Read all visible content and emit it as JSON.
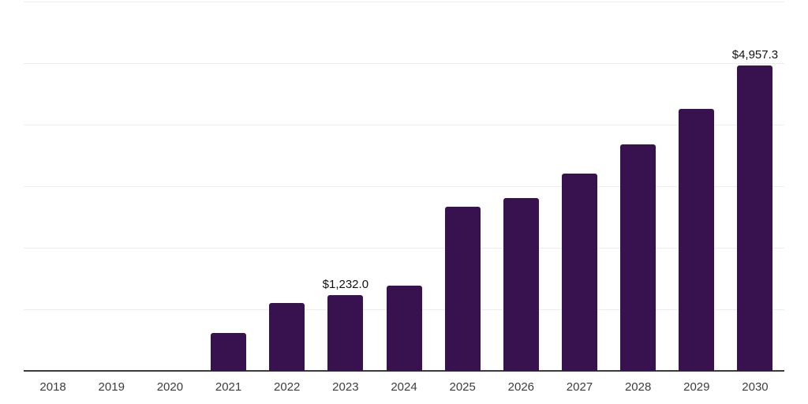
{
  "chart_data": {
    "type": "bar",
    "title": "",
    "xlabel": "",
    "ylabel": "",
    "categories": [
      "2018",
      "2019",
      "2020",
      "2021",
      "2022",
      "2023",
      "2024",
      "2025",
      "2026",
      "2027",
      "2028",
      "2029",
      "2030"
    ],
    "values": [
      0,
      0,
      0,
      615,
      1100,
      1232.0,
      1380,
      2665,
      2805,
      3200,
      3675,
      4255,
      4957.3
    ],
    "data_labels": {
      "2023": "$1,232.0",
      "2030": "$4,957.3"
    },
    "ylim": [
      0,
      6000
    ],
    "gridline_step": 1000,
    "grid": "horizontal",
    "legend": false,
    "colors": {
      "bar": "#37124F",
      "gridline": "#ededed",
      "axis_line": "#3c3c3c",
      "tick_label": "#3d3d3d",
      "data_label": "#111111",
      "background": "#ffffff"
    }
  }
}
